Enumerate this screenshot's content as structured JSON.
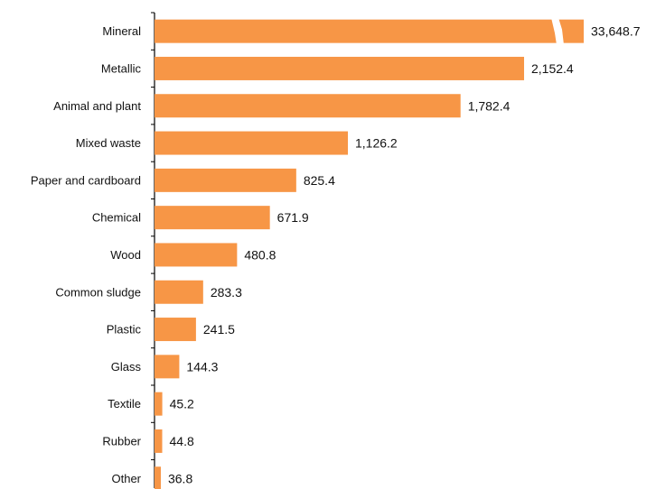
{
  "chart_data": {
    "type": "bar",
    "orientation": "horizontal",
    "categories": [
      "Mineral",
      "Metallic",
      "Animal and plant",
      "Mixed waste",
      "Paper and cardboard",
      "Chemical",
      "Wood",
      "Common sludge",
      "Plastic",
      "Glass",
      "Textile",
      "Rubber",
      "Other"
    ],
    "values": [
      33648.7,
      2152.4,
      1782.4,
      1126.2,
      825.4,
      671.9,
      480.8,
      283.3,
      241.5,
      144.3,
      45.2,
      44.8,
      36.8
    ],
    "value_labels": [
      "33,648.7",
      "2,152.4",
      "1,782.4",
      "1,126.2",
      "825.4",
      "671.9",
      "480.8",
      "283.3",
      "241.5",
      "144.3",
      "45.2",
      "44.8",
      "36.8"
    ],
    "truncated_bars": [
      "Mineral"
    ],
    "title": "",
    "xlabel": "",
    "ylabel": "",
    "grid": false,
    "legend": "none",
    "bar_color": "#F79646",
    "axis_color": "#000000"
  }
}
